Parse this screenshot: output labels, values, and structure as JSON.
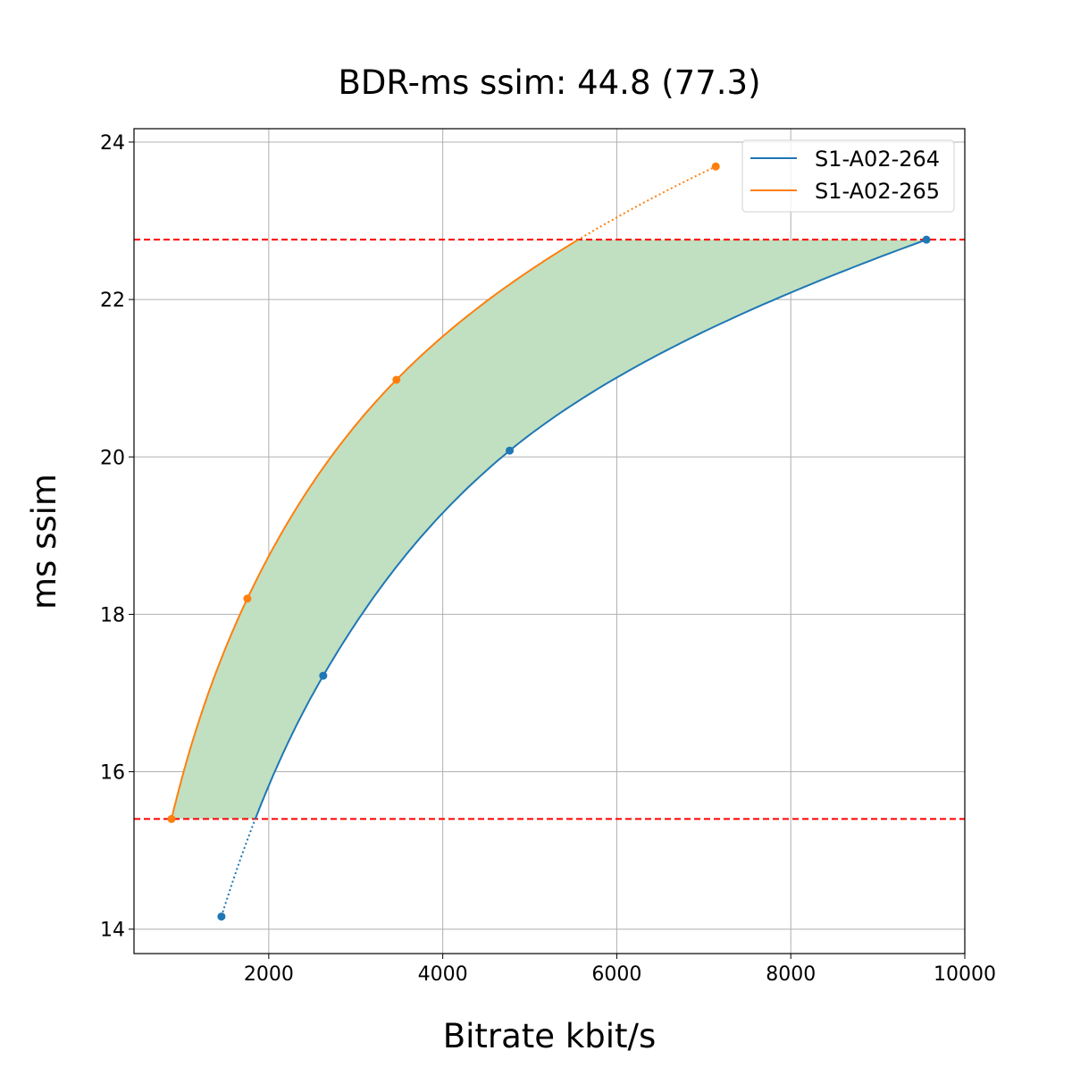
{
  "chart_data": {
    "type": "line",
    "title": "BDR-ms ssim: 44.8 (77.3)",
    "xlabel": "Bitrate kbit/s",
    "ylabel": "ms ssim",
    "xlim": [
      451,
      10000
    ],
    "ylim": [
      13.69,
      24.17
    ],
    "xticks": [
      2000,
      4000,
      6000,
      8000,
      10000
    ],
    "yticks": [
      14,
      16,
      18,
      20,
      22,
      24
    ],
    "grid": true,
    "legend_position": "top-right",
    "series": [
      {
        "name": "S1-A02-264",
        "color": "#1f77b4",
        "x": [
          1456,
          2626,
          4769,
          9559
        ],
        "y": [
          14.16,
          17.22,
          20.08,
          22.76
        ]
      },
      {
        "name": "S1-A02-265",
        "color": "#ff7f0e",
        "x": [
          882,
          1754,
          3467,
          7138
        ],
        "y": [
          15.4,
          18.2,
          20.98,
          23.69
        ]
      }
    ],
    "reference_lines": {
      "y": [
        15.4,
        22.76
      ],
      "color": "#ff0000",
      "style": "dashed"
    },
    "fill_between": {
      "color": "#c1e0c1",
      "y_range": [
        15.4,
        22.76
      ]
    }
  }
}
